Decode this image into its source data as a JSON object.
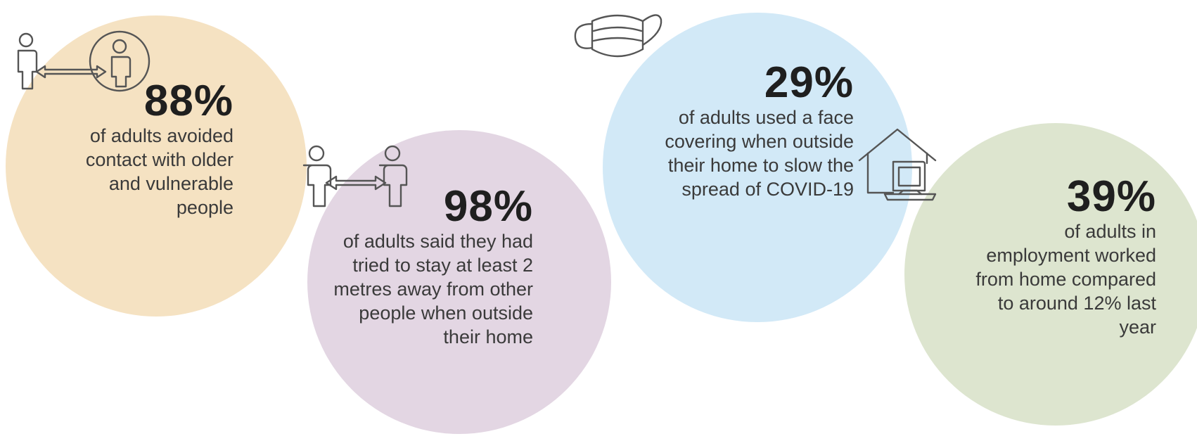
{
  "colors": {
    "circle_1": "#f5e2c2",
    "circle_2": "#e3d6e3",
    "circle_3": "#d2e9f7",
    "circle_4": "#dde5cf",
    "percent_text": "#1f1f1f",
    "body_text": "#3a3a3a",
    "icon_stroke": "#555555"
  },
  "stats": [
    {
      "icon": "avoid-contact-icon",
      "percent": "88%",
      "lines": [
        "of adults avoided",
        "contact with older",
        "and vulnerable",
        "people"
      ]
    },
    {
      "icon": "social-distance-icon",
      "percent": "98%",
      "lines": [
        "of adults said they had",
        "tried to stay at least 2",
        "metres away from other",
        "people when outside",
        "their home"
      ]
    },
    {
      "icon": "face-mask-icon",
      "percent": "29%",
      "lines": [
        "of adults used a face",
        "covering when outside",
        "their home to slow the",
        "spread of COVID-19"
      ]
    },
    {
      "icon": "work-from-home-icon",
      "percent": "39%",
      "lines": [
        "of adults in",
        "employment worked",
        "from home compared",
        "to around 12% last",
        "year"
      ]
    }
  ]
}
